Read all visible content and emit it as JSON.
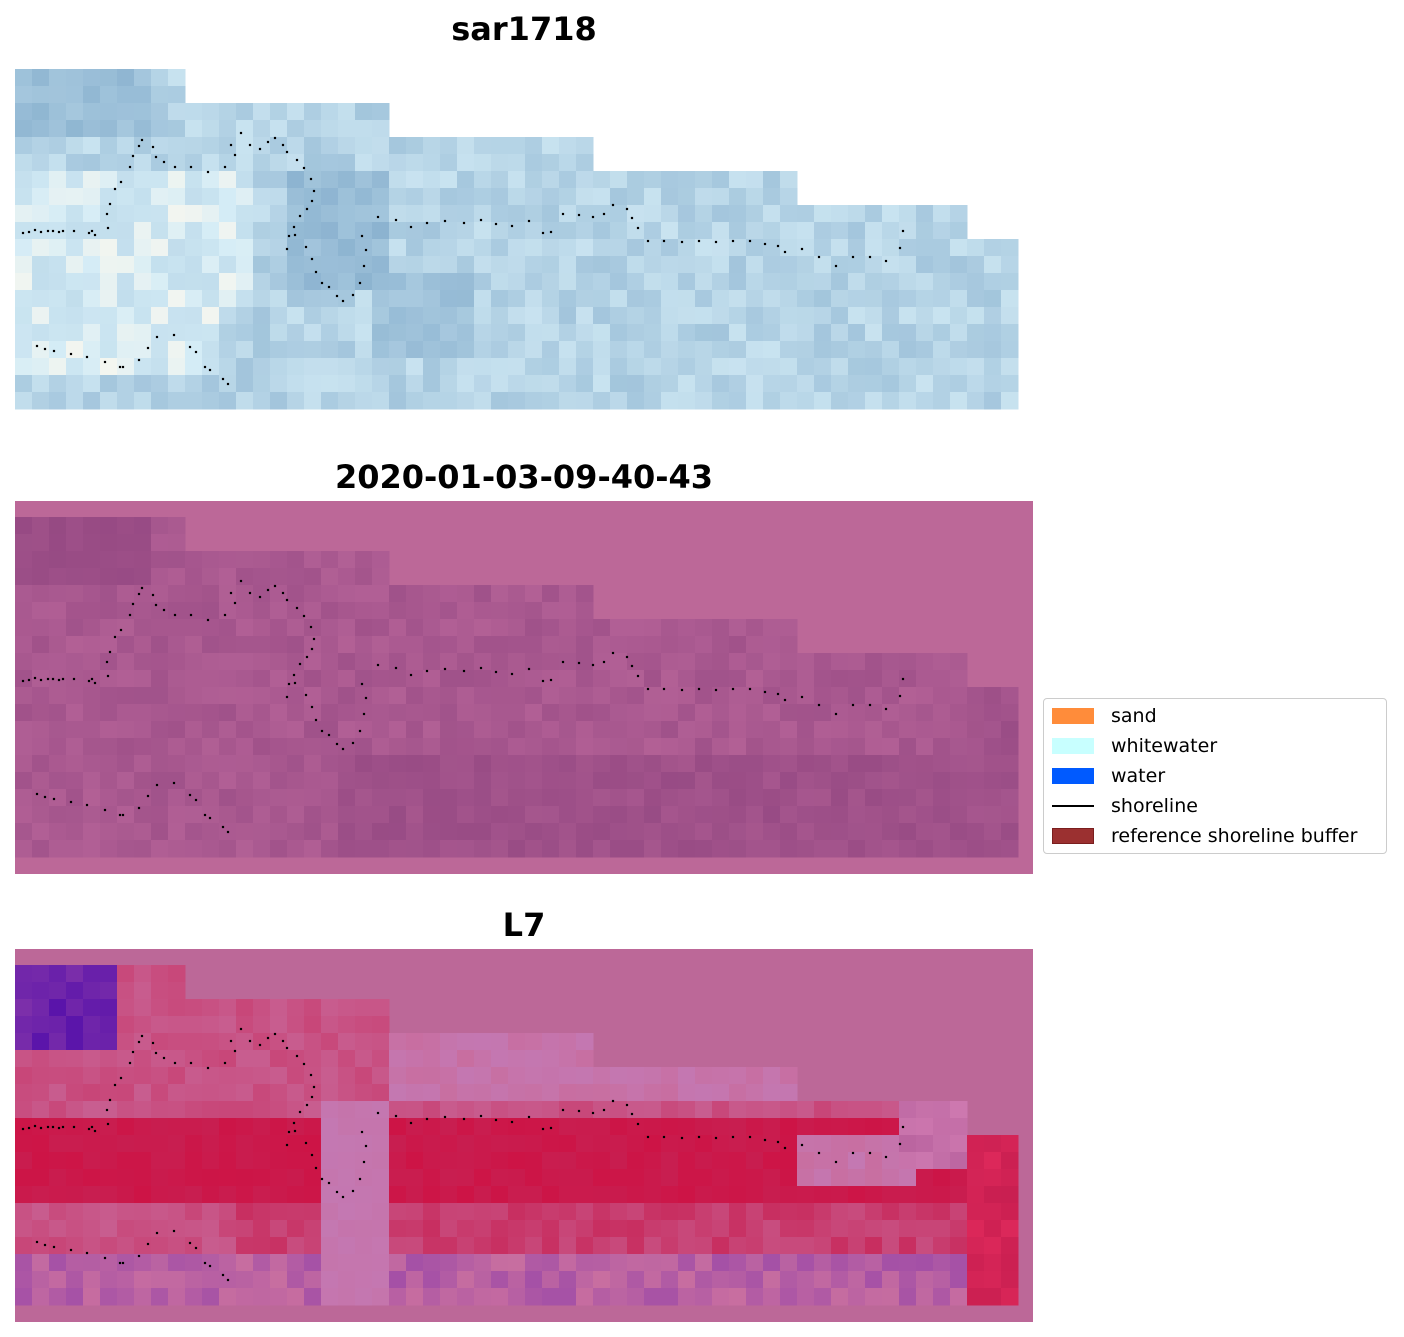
{
  "panels": [
    {
      "id": "rgb",
      "title": "sar1718"
    },
    {
      "id": "classified",
      "title": "2020-01-03-09-40-43"
    },
    {
      "id": "index",
      "title": "L7"
    }
  ],
  "legend": {
    "items": [
      {
        "label": "sand",
        "type": "patch",
        "color": "#ff8c3a"
      },
      {
        "label": "whitewater",
        "type": "patch",
        "color": "#c8ffff"
      },
      {
        "label": "water",
        "type": "patch",
        "color": "#005aff"
      },
      {
        "label": "shoreline",
        "type": "line",
        "color": "#000000"
      },
      {
        "label": "reference shoreline buffer",
        "type": "patch",
        "color": "#9b3030"
      }
    ]
  },
  "colors": {
    "buffer_background": "#bc6898",
    "shoreline_dots": "#000000"
  }
}
